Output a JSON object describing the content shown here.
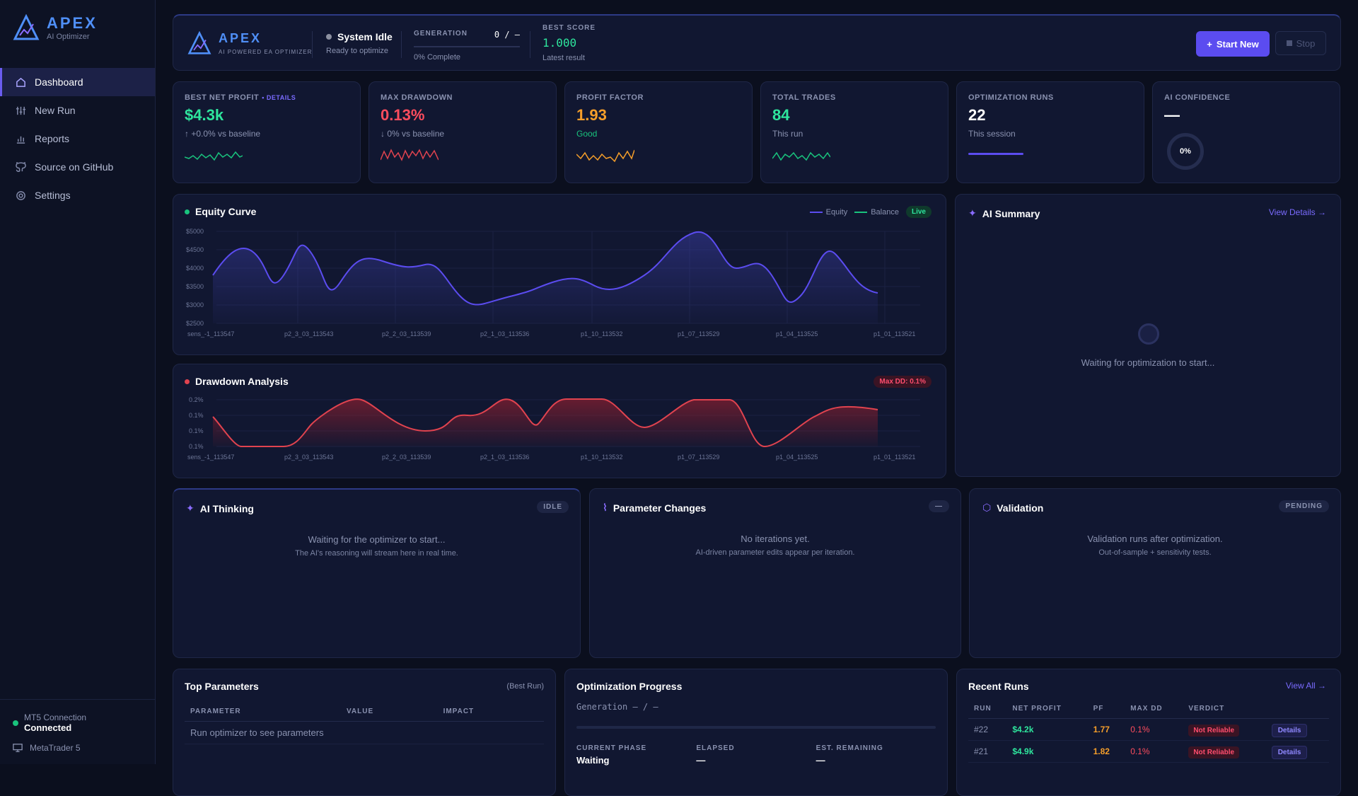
{
  "brand": {
    "name": "APEX",
    "sub": "AI Optimizer"
  },
  "nav": {
    "items": [
      {
        "label": "Dashboard"
      },
      {
        "label": "New Run"
      },
      {
        "label": "Reports"
      },
      {
        "label": "Source on GitHub"
      },
      {
        "label": "Settings"
      }
    ]
  },
  "connection": {
    "label": "MT5 Connection",
    "status": "Connected",
    "platform": "MetaTrader 5"
  },
  "topbar": {
    "logo_name": "APEX",
    "logo_sub": "AI POWERED EA OPTIMIZER",
    "status_title": "System Idle",
    "status_sub": "Ready to optimize",
    "gen_label": "GENERATION",
    "gen_value": "0 / —",
    "gen_progress": 0,
    "gen_pct": "0% Complete",
    "best_label": "BEST SCORE",
    "best_value": "1.000",
    "best_sub": "Latest result",
    "start_label": "Start New",
    "stop_label": "Stop"
  },
  "kpis": [
    {
      "label": "BEST NET PROFIT",
      "extra": "• DETAILS",
      "value": "$4.3k",
      "sub": "↑ +0.0%  vs baseline",
      "color": "#2ee59d"
    },
    {
      "label": "MAX DRAWDOWN",
      "value": "0.13%",
      "sub": "↓ 0%  vs baseline",
      "color": "#ff4d5e"
    },
    {
      "label": "PROFIT FACTOR",
      "value": "1.93",
      "sub": "Good",
      "color": "#f59e2a"
    },
    {
      "label": "TOTAL TRADES",
      "value": "84",
      "sub": "This run",
      "color": "#2ee59d"
    },
    {
      "label": "OPTIMIZATION RUNS",
      "value": "22",
      "sub": "This session",
      "color": "#ffffff"
    },
    {
      "label": "AI CONFIDENCE",
      "value": "—",
      "ring": "0%",
      "color": "#ffffff"
    }
  ],
  "equity": {
    "title": "Equity Curve",
    "legend_equity": "Equity",
    "legend_balance": "Balance",
    "live": "Live",
    "y_ticks": [
      "$5000",
      "$4500",
      "$4000",
      "$3500",
      "$3000",
      "$2500"
    ],
    "x_ticks": [
      "sens_-1_113547",
      "p2_3_03_113543",
      "p2_2_03_113539",
      "p2_1_03_113536",
      "p1_10_113532",
      "p1_07_113529",
      "p1_04_113525",
      "p1_01_113521"
    ]
  },
  "drawdown": {
    "title": "Drawdown Analysis",
    "badge": "Max DD: 0.1%",
    "y_ticks": [
      "0.2%",
      "0.1%",
      "0.1%",
      "0.1%"
    ],
    "x_ticks": [
      "sens_-1_113547",
      "p2_3_03_113543",
      "p2_2_03_113539",
      "p2_1_03_113536",
      "p1_10_113532",
      "p1_07_113529",
      "p1_04_113525",
      "p1_01_113521"
    ]
  },
  "ai_summary": {
    "title": "AI Summary",
    "link": "View Details →",
    "msg": "Waiting for optimization to start..."
  },
  "panels": {
    "thinking": {
      "title": "AI Thinking",
      "tag": "IDLE",
      "msg": "Waiting for the optimizer to start...",
      "msg2": "The AI's reasoning will stream here in real time."
    },
    "params": {
      "title": "Parameter Changes",
      "tag": "—",
      "msg": "No iterations yet.",
      "msg2": "AI-driven parameter edits appear per iteration."
    },
    "validation": {
      "title": "Validation",
      "tag": "PENDING",
      "msg": "Validation runs after optimization.",
      "msg2": "Out-of-sample + sensitivity tests."
    }
  },
  "top_params": {
    "title": "Top Parameters",
    "note": "(Best Run)",
    "cols": [
      "PARAMETER",
      "VALUE",
      "IMPACT"
    ],
    "empty": "Run optimizer to see parameters"
  },
  "progress": {
    "title": "Optimization Progress",
    "generation": "Generation — / —",
    "phase_label": "CURRENT PHASE",
    "phase": "Waiting",
    "elapsed_label": "ELAPSED",
    "elapsed": "—",
    "remaining_label": "EST. REMAINING",
    "remaining": "—"
  },
  "recent": {
    "title": "Recent Runs",
    "link": "View All →",
    "cols": [
      "RUN",
      "NET PROFIT",
      "PF",
      "MAX DD",
      "VERDICT"
    ],
    "rows": [
      {
        "run": "#22",
        "profit": "$4.2k",
        "pf": "1.77",
        "dd": "0.1%",
        "verdict": "Not Reliable",
        "action": "Details"
      },
      {
        "run": "#21",
        "profit": "$4.9k",
        "pf": "1.82",
        "dd": "0.1%",
        "verdict": "Not Reliable",
        "action": "Details"
      }
    ]
  },
  "colors": {
    "accent": "#5b4cf0",
    "equity": "#5b4cf0",
    "drawdown": "#e0434f",
    "green": "#2ee59d"
  }
}
